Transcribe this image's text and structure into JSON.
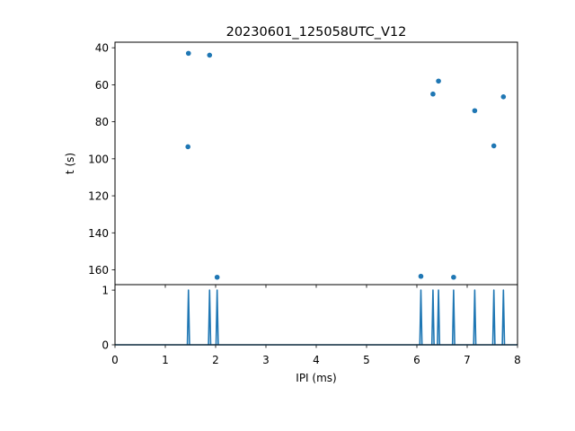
{
  "chart_data": [
    {
      "type": "scatter",
      "title": "20230601_125058UTC_V12",
      "xlabel": "",
      "ylabel": "t (s)",
      "xlim": [
        0,
        8
      ],
      "ylim": [
        168,
        37
      ],
      "y_inverted": true,
      "yticks": [
        40,
        60,
        80,
        100,
        120,
        140,
        160
      ],
      "color": "#1f77b4",
      "points": [
        {
          "x": 1.46,
          "y": 43
        },
        {
          "x": 1.88,
          "y": 44
        },
        {
          "x": 1.45,
          "y": 93.5
        },
        {
          "x": 2.03,
          "y": 164
        },
        {
          "x": 6.08,
          "y": 163.5
        },
        {
          "x": 6.32,
          "y": 65
        },
        {
          "x": 6.43,
          "y": 58
        },
        {
          "x": 6.73,
          "y": 164
        },
        {
          "x": 7.15,
          "y": 74
        },
        {
          "x": 7.53,
          "y": 93
        },
        {
          "x": 7.72,
          "y": 66.5
        }
      ]
    },
    {
      "type": "line",
      "xlabel": "IPI (ms)",
      "ylabel": "",
      "xlim": [
        0,
        8
      ],
      "ylim": [
        0,
        1.1
      ],
      "xticks": [
        0,
        1,
        2,
        3,
        4,
        5,
        6,
        7,
        8
      ],
      "yticks": [
        0,
        1
      ],
      "color": "#1f77b4",
      "spikes": [
        1.46,
        1.88,
        2.03,
        6.08,
        6.32,
        6.43,
        6.73,
        7.15,
        7.53,
        7.72
      ],
      "spike_height": 1
    }
  ]
}
